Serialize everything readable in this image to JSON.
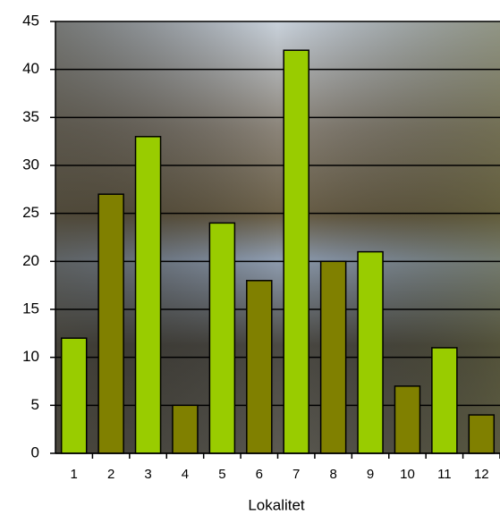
{
  "chart_data": {
    "type": "bar",
    "xlabel": "Lokalitet",
    "categories": [
      "1",
      "2",
      "3",
      "4",
      "5",
      "6",
      "7",
      "8",
      "9",
      "10",
      "11",
      "12"
    ],
    "values": [
      12,
      27,
      33,
      5,
      24,
      18,
      42,
      20,
      21,
      7,
      11,
      4
    ],
    "colors": [
      "#99cc00",
      "#808000",
      "#99cc00",
      "#808000",
      "#99cc00",
      "#808000",
      "#99cc00",
      "#808000",
      "#99cc00",
      "#808000",
      "#99cc00",
      "#808000"
    ],
    "ylim": [
      0,
      45
    ],
    "yticks": [
      0,
      5,
      10,
      15,
      20,
      25,
      30,
      35,
      40,
      45
    ],
    "grid": true
  }
}
